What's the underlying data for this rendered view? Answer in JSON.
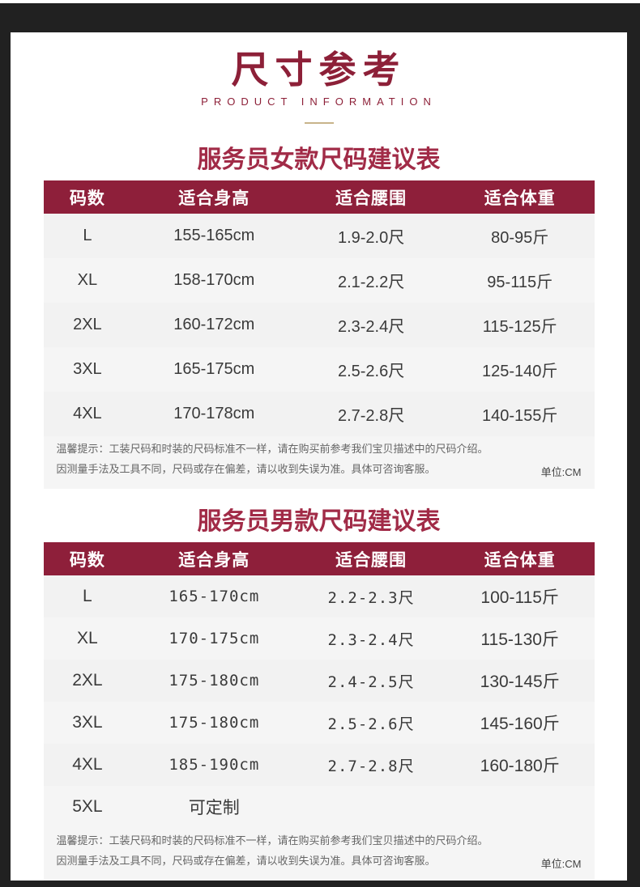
{
  "header": {
    "title": "尺寸参考",
    "subtitle": "PRODUCT INFORMATION"
  },
  "colors": {
    "frame": "#212121",
    "maroon_header_bg": "#8e1f3a",
    "maroon_title": "#a12b47",
    "hero_maroon": "#8d2038",
    "gold_dash": "#c8b48a",
    "body_bg": "#f5f5f5"
  },
  "tables": [
    {
      "title": "服务员女款尺码建议表",
      "headers": [
        "码数",
        "适合身高",
        "适合腰围",
        "适合体重"
      ],
      "rows": [
        [
          "L",
          "155-165cm",
          "1.9-2.0尺",
          "80-95斤"
        ],
        [
          "XL",
          "158-170cm",
          "2.1-2.2尺",
          "95-115斤"
        ],
        [
          "2XL",
          "160-172cm",
          "2.3-2.4尺",
          "115-125斤"
        ],
        [
          "3XL",
          "165-175cm",
          "2.5-2.6尺",
          "125-140斤"
        ],
        [
          "4XL",
          "170-178cm",
          "2.7-2.8尺",
          "140-155斤"
        ]
      ],
      "notes": [
        "温馨提示：工装尺码和时装的尺码标准不一样，请在购买前参考我们宝贝描述中的尺码介绍。",
        "因测量手法及工具不同，尺码或存在偏差，请以收到失误为准。具体可咨询客服。"
      ],
      "unit": "单位:CM"
    },
    {
      "title": "服务员男款尺码建议表",
      "headers": [
        "码数",
        "适合身高",
        "适合腰围",
        "适合体重"
      ],
      "rows": [
        [
          "L",
          "165-170cm",
          "2.2-2.3尺",
          "100-115斤"
        ],
        [
          "XL",
          "170-175cm",
          "2.3-2.4尺",
          "115-130斤"
        ],
        [
          "2XL",
          "175-180cm",
          "2.4-2.5尺",
          "130-145斤"
        ],
        [
          "3XL",
          "175-180cm",
          "2.5-2.6尺",
          "145-160斤"
        ],
        [
          "4XL",
          "185-190cm",
          "2.7-2.8尺",
          "160-180斤"
        ],
        [
          "5XL",
          "可定制",
          "",
          ""
        ]
      ],
      "notes": [
        "温馨提示：工装尺码和时装的尺码标准不一样，请在购买前参考我们宝贝描述中的尺码介绍。",
        "因测量手法及工具不同，尺码或存在偏差，请以收到失误为准。具体可咨询客服。"
      ],
      "unit": "单位:CM"
    }
  ]
}
